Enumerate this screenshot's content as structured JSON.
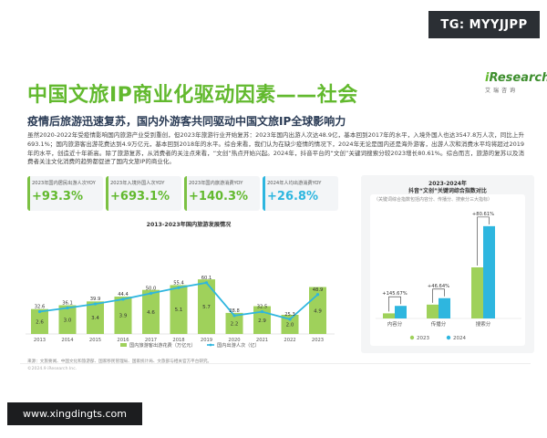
{
  "watermark_top": "TG: MYYJJPP",
  "watermark_bottom": "www.xingdingts.com",
  "title": "中国文旅IP商业化驱动因素——社会",
  "logo": {
    "brand_i": "i",
    "brand_rest": "Research",
    "cn": "艾瑞咨询"
  },
  "subtitle": "疫情后旅游迅速复苏，国内外游客共同驱动中国文旅IP全球影响力",
  "body": "虽然2020-2022年受疫情影响国内旅游产业受到重创，但2023年旅游行业开始复苏：2023年国内出游人次达48.9亿，基本回到2017年的水平，入境外国人也达3547.8万人次，同比上升693.1%；国内旅游客出游花费达到4.9万亿元，基本回到2018年的水平。综合来看，我们认为在缺少疫情的情况下，2024年无论是国内还是海外游客，出游人次和消费水平均将超过2019年的水平，创造近十年新高。除了旅游复苏，从消费者的关注点来看，“文创”热点开始兴起。2024年，抖音平台的“文创”关键词搜索分较2023增长80.61%。综合而言，旅游的复苏以及消费者关注文化消费的趋势都促进了国内文旅IP的商业化。",
  "kpis": [
    {
      "label": "2023年国内居民出游人次YOY",
      "value": "+93.3%",
      "color": "#62b92e"
    },
    {
      "label": "2023年入境外国人次YOY",
      "value": "+693.1%",
      "color": "#62b92e"
    },
    {
      "label": "2023年国内旅游消费YOY",
      "value": "+140.3%",
      "color": "#62b92e"
    },
    {
      "label": "2024年人均出游消费YOY",
      "value": "+26.8%",
      "color": "#2eb6df"
    }
  ],
  "source_note": "来源：文旅要闻、中国文化和旅游部、国家移民管理局、国家统计局、文旅部与相关官方平台研究。",
  "copyright": "©2024.9 iResearch Inc.",
  "chart_data": [
    {
      "type": "bar",
      "title": "2013-2023年国内旅游发展情况",
      "categories": [
        "2013",
        "2014",
        "2015",
        "2016",
        "2017",
        "2018",
        "2019",
        "2020",
        "2021",
        "2022",
        "2023"
      ],
      "series": [
        {
          "name": "国内旅游客出游花费（万亿元）",
          "kind": "bar",
          "color": "#9fd15b",
          "values": [
            2.6,
            3.0,
            3.4,
            3.9,
            4.6,
            5.1,
            5.7,
            2.2,
            2.9,
            2.0,
            4.9
          ]
        },
        {
          "name": "国内出游人次（亿）",
          "kind": "line",
          "color": "#2eb6df",
          "values": [
            32.6,
            36.1,
            39.9,
            44.4,
            50.0,
            55.4,
            60.1,
            28.8,
            32.5,
            25.3,
            48.9
          ]
        }
      ]
    },
    {
      "type": "bar",
      "title": "2023-2024年",
      "title_line2": "抖音“文创”关键词综合指数对比",
      "note": "（关键词综合指数包括内容分、传播分、搜索分三大指标）",
      "categories": [
        "内容分",
        "传播分",
        "搜索分"
      ],
      "series": [
        {
          "name": "2023",
          "color": "#9fd15b",
          "values": [
            10.0,
            27.1,
            100.0
          ]
        },
        {
          "name": "2024",
          "color": "#2eb6df",
          "values": [
            24.6,
            39.7,
            180.6
          ]
        }
      ],
      "growth_labels": [
        "+145.67%",
        "+46.64%",
        "+80.61%"
      ]
    }
  ]
}
